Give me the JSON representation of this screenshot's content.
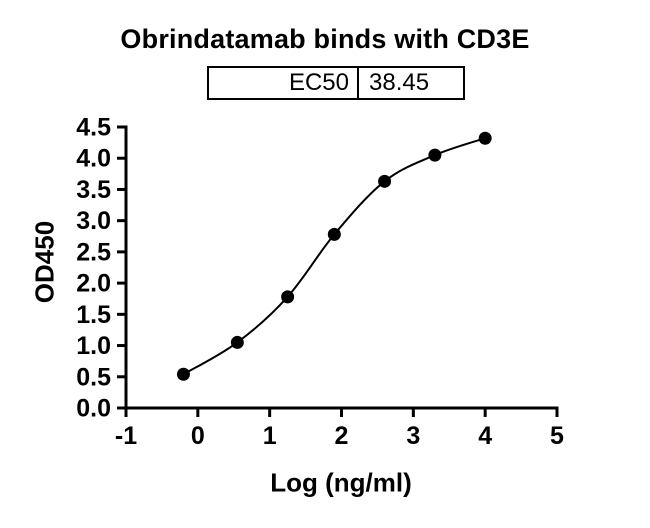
{
  "title": "Obrindatamab binds with CD3E",
  "ec50_table": {
    "label": "EC50",
    "value": "38.45"
  },
  "chart_data": {
    "type": "scatter",
    "title": "Obrindatamab binds with CD3E",
    "xlabel": "Log (ng/ml)",
    "ylabel": "OD450",
    "xlim": [
      -1,
      5
    ],
    "ylim": [
      0,
      4.5
    ],
    "x_ticks": [
      -1,
      0,
      1,
      2,
      3,
      4,
      5
    ],
    "x_tick_labels": [
      "-1",
      "0",
      "1",
      "2",
      "3",
      "4",
      "5"
    ],
    "y_ticks": [
      0,
      0.5,
      1,
      1.5,
      2,
      2.5,
      3,
      3.5,
      4,
      4.5
    ],
    "y_tick_labels": [
      "0.0",
      "0.5",
      "1.0",
      "1.5",
      "2.0",
      "2.5",
      "3.0",
      "3.5",
      "4.0",
      "4.5"
    ],
    "points": {
      "x": [
        -0.2,
        0.55,
        1.25,
        1.9,
        2.6,
        3.3,
        4.0
      ],
      "y": [
        0.54,
        1.05,
        1.78,
        2.78,
        3.63,
        4.05,
        4.32
      ]
    },
    "ec50": 38.45,
    "marker_color": "#000000",
    "line_color": "#000000",
    "background": "#ffffff",
    "grid": false,
    "legend": false,
    "curve": "sigmoidal dose-response fit through points"
  }
}
